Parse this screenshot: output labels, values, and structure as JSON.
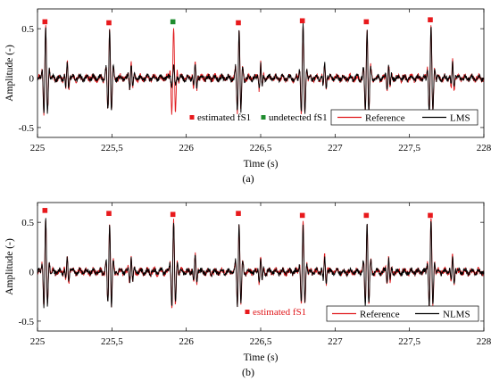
{
  "colors": {
    "reference": "#e0191c",
    "adaptive": "#000000",
    "estimated_marker": "#e8191c",
    "undetected_marker": "#1f8c2e"
  },
  "chart_data": [
    {
      "type": "line",
      "caption": "(a)",
      "xlabel": "Time (s)",
      "ylabel": "Amplitude (-)",
      "xlim": [
        225,
        228
      ],
      "ylim": [
        -0.6,
        0.7
      ],
      "xticks": [
        225,
        225.5,
        226,
        226.5,
        227,
        227.5,
        228
      ],
      "xtick_labels": [
        "225",
        "225,5",
        "226",
        "226,5",
        "227",
        "227,5",
        "228"
      ],
      "yticks": [
        -0.5,
        0,
        0.5
      ],
      "ytick_labels": [
        "-0.5",
        "0",
        "0.5"
      ],
      "grid": false,
      "legend": {
        "placement": "bottom-right",
        "entries": [
          "Reference",
          "LMS"
        ]
      },
      "series": [
        {
          "name": "Reference",
          "role": "reference"
        },
        {
          "name": "LMS",
          "role": "adaptive"
        }
      ],
      "beats": [
        225.05,
        225.48,
        225.91,
        226.35,
        226.78,
        227.21,
        227.64
      ],
      "reference_peaks": [
        0.52,
        0.5,
        0.51,
        0.5,
        0.52,
        0.5,
        0.51
      ],
      "adaptive_peaks": [
        0.52,
        0.5,
        0.12,
        0.5,
        0.52,
        0.5,
        0.51
      ],
      "markers": {
        "legend": [
          {
            "label": "estimated fS1",
            "kind": "estimated"
          },
          {
            "label": "undetected fS1",
            "kind": "undetected"
          }
        ],
        "points": [
          {
            "x": 225.05,
            "y": 0.57,
            "kind": "estimated"
          },
          {
            "x": 225.48,
            "y": 0.56,
            "kind": "estimated"
          },
          {
            "x": 225.91,
            "y": 0.57,
            "kind": "undetected"
          },
          {
            "x": 226.35,
            "y": 0.56,
            "kind": "estimated"
          },
          {
            "x": 226.78,
            "y": 0.58,
            "kind": "estimated"
          },
          {
            "x": 227.21,
            "y": 0.57,
            "kind": "estimated"
          },
          {
            "x": 227.64,
            "y": 0.59,
            "kind": "estimated"
          }
        ]
      }
    },
    {
      "type": "line",
      "caption": "(b)",
      "xlabel": "Time (s)",
      "ylabel": "Amplitude (-)",
      "xlim": [
        225,
        228
      ],
      "ylim": [
        -0.6,
        0.7
      ],
      "xticks": [
        225,
        225.5,
        226,
        226.5,
        227,
        227.5,
        228
      ],
      "xtick_labels": [
        "225",
        "225,5",
        "226",
        "226,5",
        "227",
        "227,5",
        "228"
      ],
      "yticks": [
        -0.5,
        0,
        0.5
      ],
      "ytick_labels": [
        "-0.5",
        "0",
        "0.5"
      ],
      "grid": false,
      "legend": {
        "placement": "bottom-right",
        "entries": [
          "Reference",
          "NLMS"
        ]
      },
      "series": [
        {
          "name": "Reference",
          "role": "reference"
        },
        {
          "name": "NLMS",
          "role": "adaptive"
        }
      ],
      "beats": [
        225.05,
        225.48,
        225.91,
        226.35,
        226.78,
        227.21,
        227.64
      ],
      "reference_peaks": [
        0.52,
        0.5,
        0.51,
        0.5,
        0.49,
        0.5,
        0.51
      ],
      "adaptive_peaks": [
        0.52,
        0.5,
        0.5,
        0.5,
        0.44,
        0.5,
        0.51
      ],
      "markers": {
        "legend": [
          {
            "label": "estimated fS1",
            "kind": "estimated"
          }
        ],
        "points": [
          {
            "x": 225.05,
            "y": 0.62,
            "kind": "estimated"
          },
          {
            "x": 225.48,
            "y": 0.59,
            "kind": "estimated"
          },
          {
            "x": 225.91,
            "y": 0.58,
            "kind": "estimated"
          },
          {
            "x": 226.35,
            "y": 0.59,
            "kind": "estimated"
          },
          {
            "x": 226.78,
            "y": 0.57,
            "kind": "estimated"
          },
          {
            "x": 227.21,
            "y": 0.57,
            "kind": "estimated"
          },
          {
            "x": 227.64,
            "y": 0.57,
            "kind": "estimated"
          }
        ]
      }
    }
  ]
}
